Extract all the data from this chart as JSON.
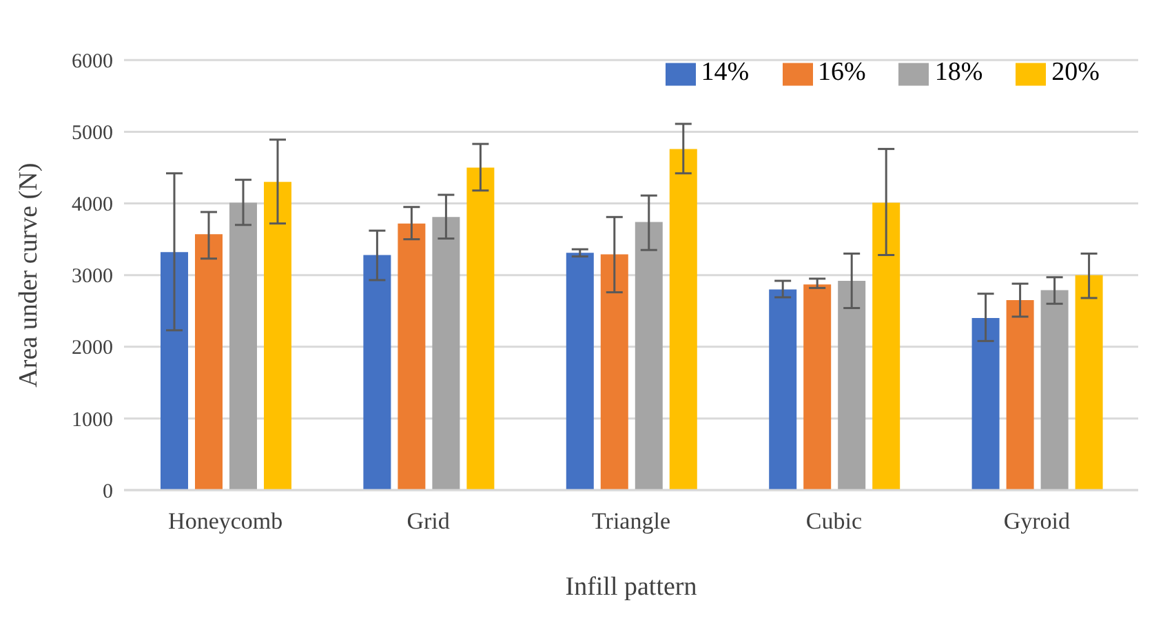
{
  "chart_data": {
    "type": "bar",
    "xlabel": "Infill pattern",
    "ylabel": "Area under curve (N)",
    "categories": [
      "Honeycomb",
      "Grid",
      "Triangle",
      "Cubic",
      "Gyroid"
    ],
    "series": [
      {
        "name": "14%",
        "color": "#4472c4",
        "values": [
          3320,
          3280,
          3310,
          2800,
          2400
        ],
        "errors": [
          [
            2230,
            4420
          ],
          [
            2930,
            3620
          ],
          [
            3260,
            3360
          ],
          [
            2690,
            2920
          ],
          [
            2080,
            2740
          ]
        ]
      },
      {
        "name": "16%",
        "color": "#ed7d31",
        "values": [
          3570,
          3720,
          3290,
          2870,
          2650
        ],
        "errors": [
          [
            3230,
            3880
          ],
          [
            3500,
            3950
          ],
          [
            2760,
            3810
          ],
          [
            2820,
            2950
          ],
          [
            2420,
            2880
          ]
        ]
      },
      {
        "name": "18%",
        "color": "#a5a5a5",
        "values": [
          4010,
          3810,
          3740,
          2920,
          2790
        ],
        "errors": [
          [
            3700,
            4330
          ],
          [
            3510,
            4120
          ],
          [
            3350,
            4110
          ],
          [
            2540,
            3300
          ],
          [
            2600,
            2970
          ]
        ]
      },
      {
        "name": "20%",
        "color": "#ffc000",
        "values": [
          4300,
          4500,
          4760,
          4010,
          3000
        ],
        "errors": [
          [
            3720,
            4890
          ],
          [
            4180,
            4830
          ],
          [
            4420,
            5110
          ],
          [
            3280,
            4760
          ],
          [
            2680,
            3300
          ]
        ]
      }
    ],
    "ylim": [
      0,
      6000
    ],
    "yticks": [
      0,
      1000,
      2000,
      3000,
      4000,
      5000,
      6000
    ],
    "grid": "y",
    "legend": "top right"
  }
}
